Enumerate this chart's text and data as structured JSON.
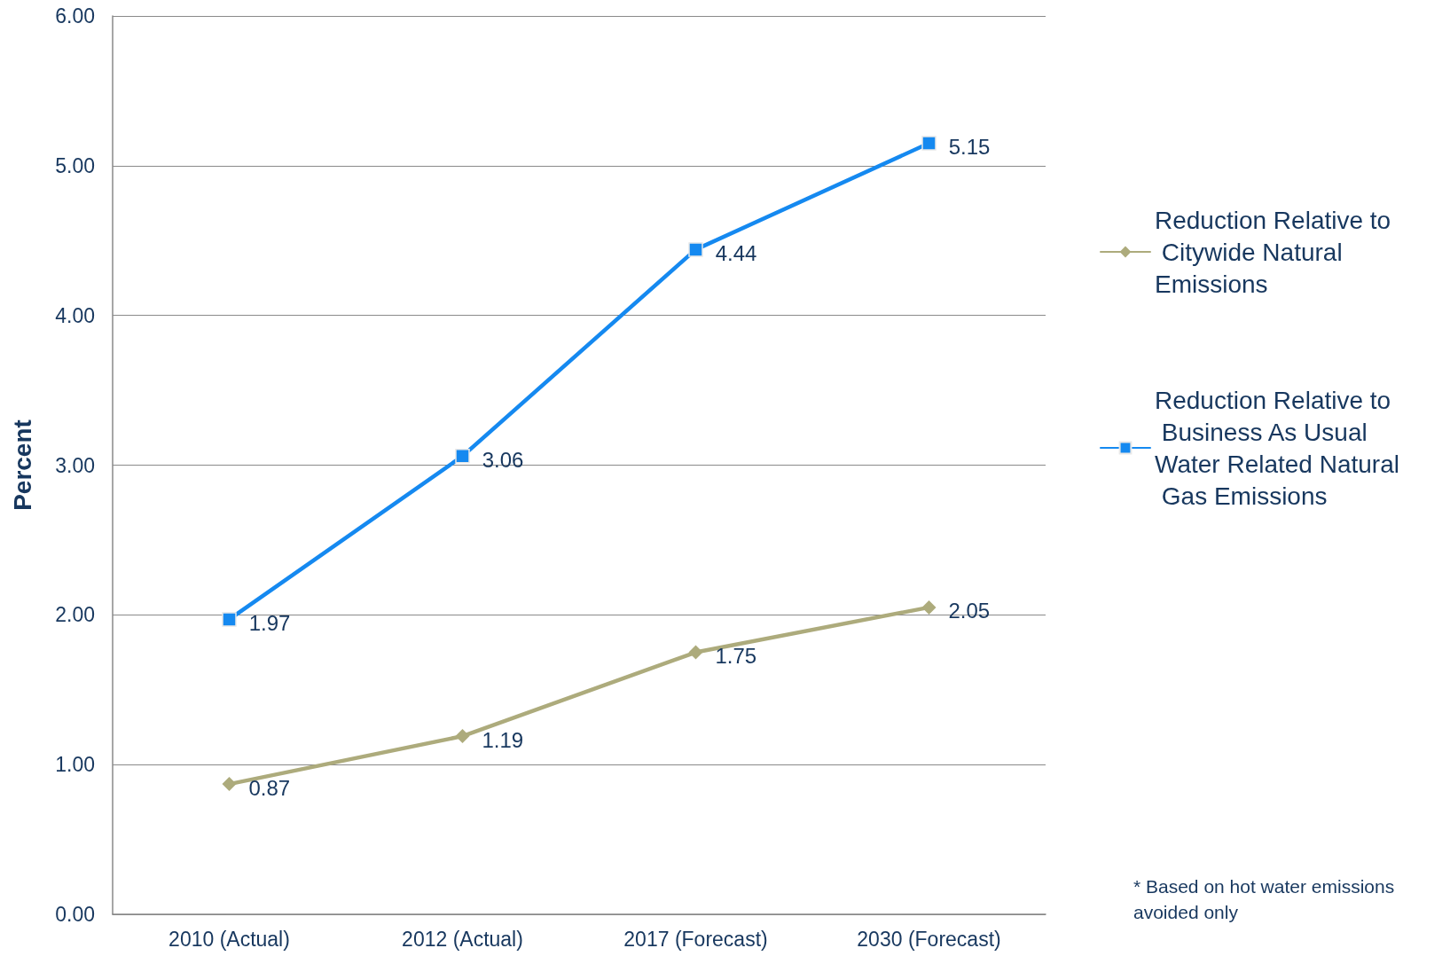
{
  "chart_data": {
    "type": "line",
    "ylabel": "Percent",
    "categories": [
      "2010 (Actual)",
      "2012 (Actual)",
      "2017 (Forecast)",
      "2030 (Forecast)"
    ],
    "series": [
      {
        "name": "Reduction Relative to Citywide Natural Emissions",
        "color": "#adab7c",
        "marker": "diamond",
        "values": [
          0.87,
          1.19,
          1.75,
          2.05
        ]
      },
      {
        "name": "Reduction Relative to Business As Usual Water Related Natural Gas Emissions",
        "color": "#1589f0",
        "marker": "square",
        "values": [
          1.97,
          3.06,
          4.44,
          5.15
        ]
      }
    ],
    "ylim": [
      0,
      6
    ],
    "yticks": [
      {
        "value": 0,
        "label": "0.00"
      },
      {
        "value": 1,
        "label": "1.00"
      },
      {
        "value": 2,
        "label": "2.00"
      },
      {
        "value": 3,
        "label": "3.00"
      },
      {
        "value": 4,
        "label": "4.00"
      },
      {
        "value": 5,
        "label": "5.00"
      },
      {
        "value": 6,
        "label": "6.00"
      }
    ],
    "grid": "y",
    "legend": "right",
    "data_labels": true,
    "line_style": "solid",
    "annotations": [
      "* Based on hot water emissions avoided only"
    ]
  }
}
